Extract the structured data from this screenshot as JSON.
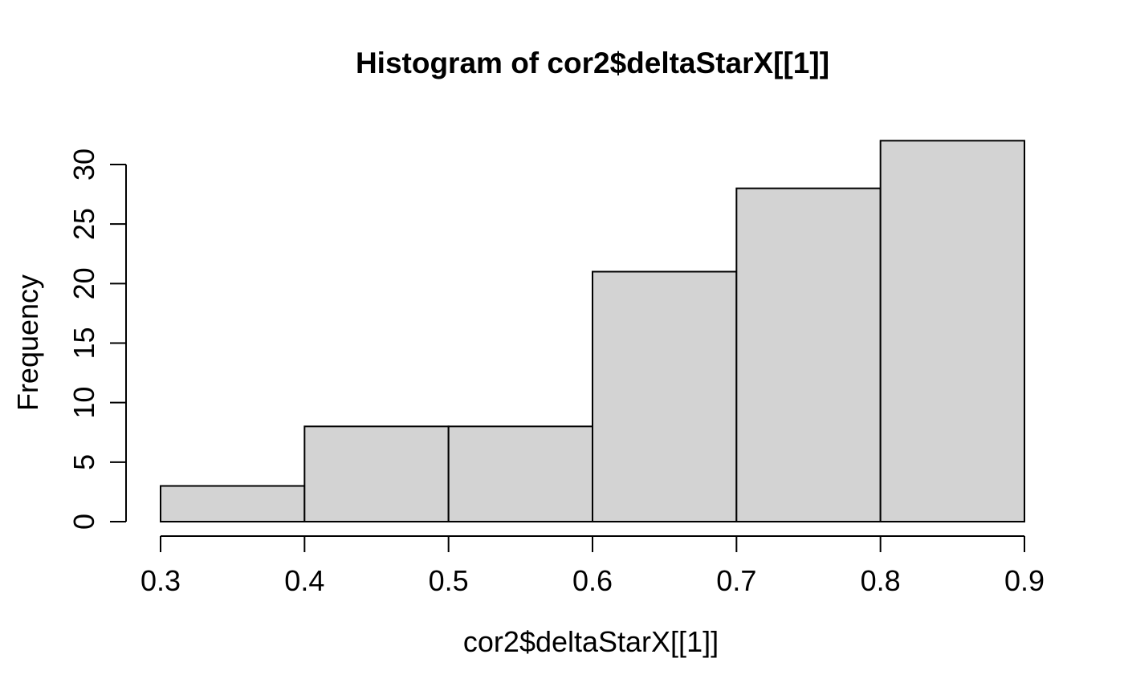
{
  "chart_data": {
    "type": "bar",
    "subtype": "histogram",
    "title": "Histogram of cor2$deltaStarX[[1]]",
    "xlabel": "cor2$deltaStarX[[1]]",
    "ylabel": "Frequency",
    "bin_edges": [
      0.3,
      0.4,
      0.5,
      0.6,
      0.7,
      0.8,
      0.9
    ],
    "values": [
      3,
      8,
      8,
      21,
      28,
      32
    ],
    "x_tick_labels": [
      "0.3",
      "0.4",
      "0.5",
      "0.6",
      "0.7",
      "0.8",
      "0.9"
    ],
    "y_tick_labels": [
      "0",
      "5",
      "10",
      "15",
      "20",
      "25",
      "30"
    ],
    "y_tick_values": [
      0,
      5,
      10,
      15,
      20,
      25,
      30
    ],
    "xlim": [
      0.3,
      0.9
    ],
    "ylim": [
      0,
      30
    ],
    "grid": false,
    "legend": "none",
    "colors": {
      "bar_fill": "#d3d3d3",
      "bar_border": "#000000",
      "axis": "#000000",
      "text": "#000000",
      "background": "#ffffff"
    }
  }
}
